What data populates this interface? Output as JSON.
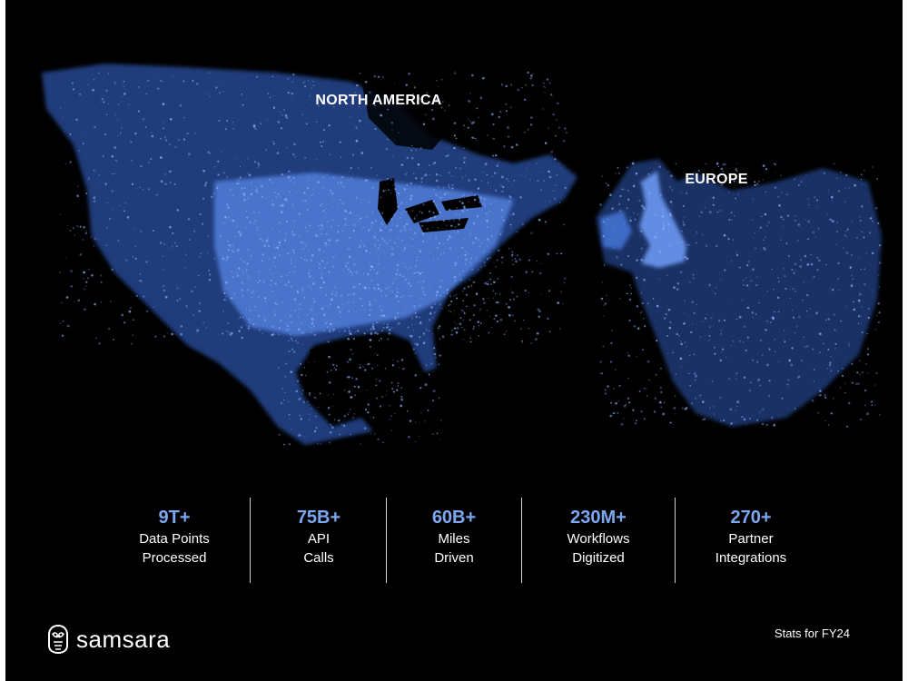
{
  "map": {
    "regions": {
      "north_america": "NORTH AMERICA",
      "europe": "EUROPE"
    },
    "colors": {
      "background": "#000000",
      "network": "#5b8def",
      "network_bright": "#8fb4ff"
    }
  },
  "stats": [
    {
      "value": "9T+",
      "line1": "Data Points",
      "line2": "Processed"
    },
    {
      "value": "75B+",
      "line1": "API",
      "line2": "Calls"
    },
    {
      "value": "60B+",
      "line1": "Miles",
      "line2": "Driven"
    },
    {
      "value": "230M+",
      "line1": "Workflows",
      "line2": "Digitized"
    },
    {
      "value": "270+",
      "line1": "Partner",
      "line2": "Integrations"
    }
  ],
  "brand": {
    "name": "samsara",
    "logo_icon": "owl-logo-icon"
  },
  "footnote": "Stats for FY24",
  "colors": {
    "accent": "#7ea7f2",
    "text": "#ffffff"
  }
}
